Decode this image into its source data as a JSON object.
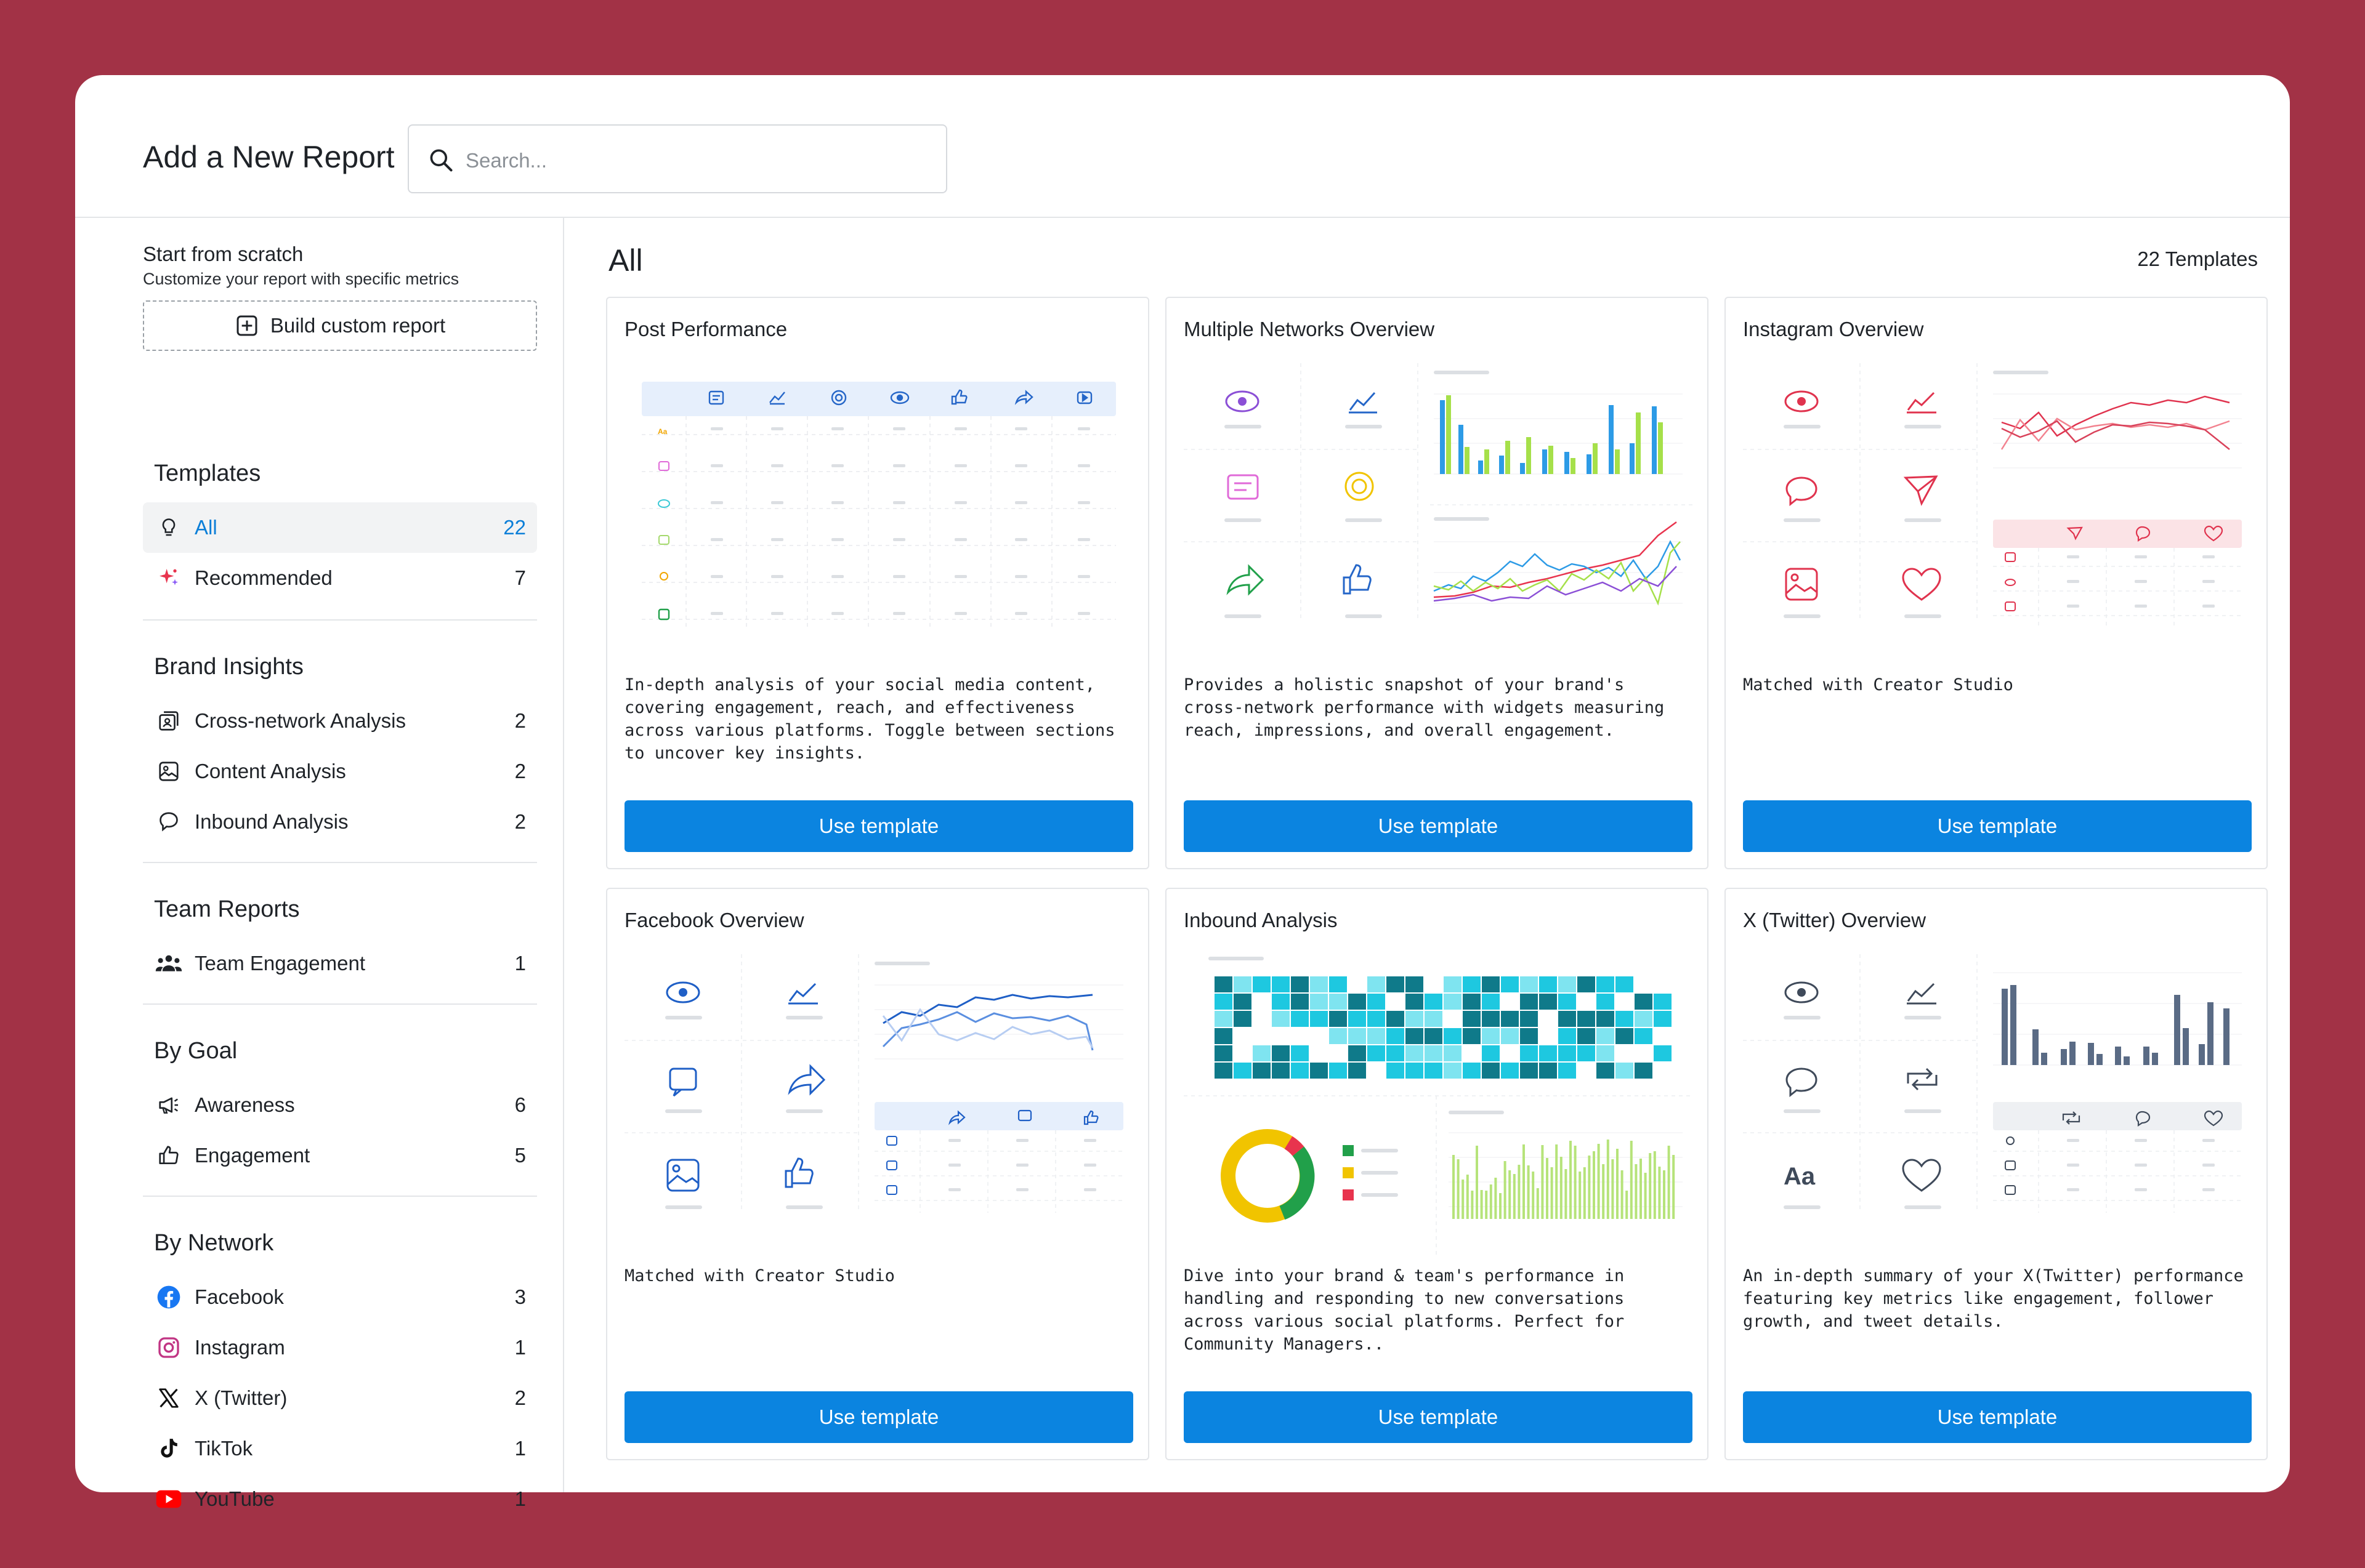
{
  "header": {
    "title": "Add a New Report",
    "search_placeholder": "Search..."
  },
  "sidebar": {
    "scratch_title": "Start from scratch",
    "scratch_sub": "Customize your report with specific metrics",
    "build_label": "Build custom report",
    "templates": {
      "title": "Templates",
      "items": [
        {
          "label": "All",
          "count": "22",
          "icon": "lightbulb-icon"
        },
        {
          "label": "Recommended",
          "count": "7",
          "icon": "sparkle-icon"
        }
      ]
    },
    "brand": {
      "title": "Brand Insights",
      "items": [
        {
          "label": "Cross-network Analysis",
          "count": "2",
          "icon": "cross-network-icon"
        },
        {
          "label": "Content Analysis",
          "count": "2",
          "icon": "image-icon"
        },
        {
          "label": "Inbound Analysis",
          "count": "2",
          "icon": "chat-bubble-icon"
        }
      ]
    },
    "team": {
      "title": "Team Reports",
      "items": [
        {
          "label": "Team Engagement",
          "count": "1",
          "icon": "team-icon"
        }
      ]
    },
    "goal": {
      "title": "By Goal",
      "items": [
        {
          "label": "Awareness",
          "count": "6",
          "icon": "megaphone-icon"
        },
        {
          "label": "Engagement",
          "count": "5",
          "icon": "thumbs-up-icon"
        }
      ]
    },
    "network": {
      "title": "By Network",
      "items": [
        {
          "label": "Facebook",
          "count": "3",
          "icon": "facebook-icon"
        },
        {
          "label": "Instagram",
          "count": "1",
          "icon": "instagram-icon"
        },
        {
          "label": "X (Twitter)",
          "count": "2",
          "icon": "x-icon"
        },
        {
          "label": "TikTok",
          "count": "1",
          "icon": "tiktok-icon"
        },
        {
          "label": "YouTube",
          "count": "1",
          "icon": "youtube-icon"
        }
      ]
    }
  },
  "main": {
    "title": "All",
    "count_label": "22 Templates",
    "cards": [
      {
        "title": "Post Performance",
        "desc": "In-depth analysis of your social media content, covering engagement, reach, and effectiveness across various platforms. Toggle between sections to uncover key insights.",
        "button": "Use template"
      },
      {
        "title": "Multiple Networks Overview",
        "desc": "Provides a holistic snapshot of your brand's cross-network performance with widgets measuring reach, impressions, and overall engagement.",
        "button": "Use template"
      },
      {
        "title": "Instagram Overview",
        "desc": "Matched with Creator Studio",
        "button": "Use template"
      },
      {
        "title": "Facebook Overview",
        "desc": "Matched with Creator Studio",
        "button": "Use template"
      },
      {
        "title": "Inbound Analysis",
        "desc": "Dive into your brand & team's performance in handling and responding to new conversations across various social platforms. Perfect for Community Managers..",
        "button": "Use template"
      },
      {
        "title": "X (Twitter) Overview",
        "desc": "An in-depth summary of your X(Twitter) performance featuring key metrics like engagement, follower growth, and tweet details.",
        "button": "Use template"
      }
    ]
  },
  "colors": {
    "accent": "#0b84e0",
    "background": "#a23246"
  }
}
